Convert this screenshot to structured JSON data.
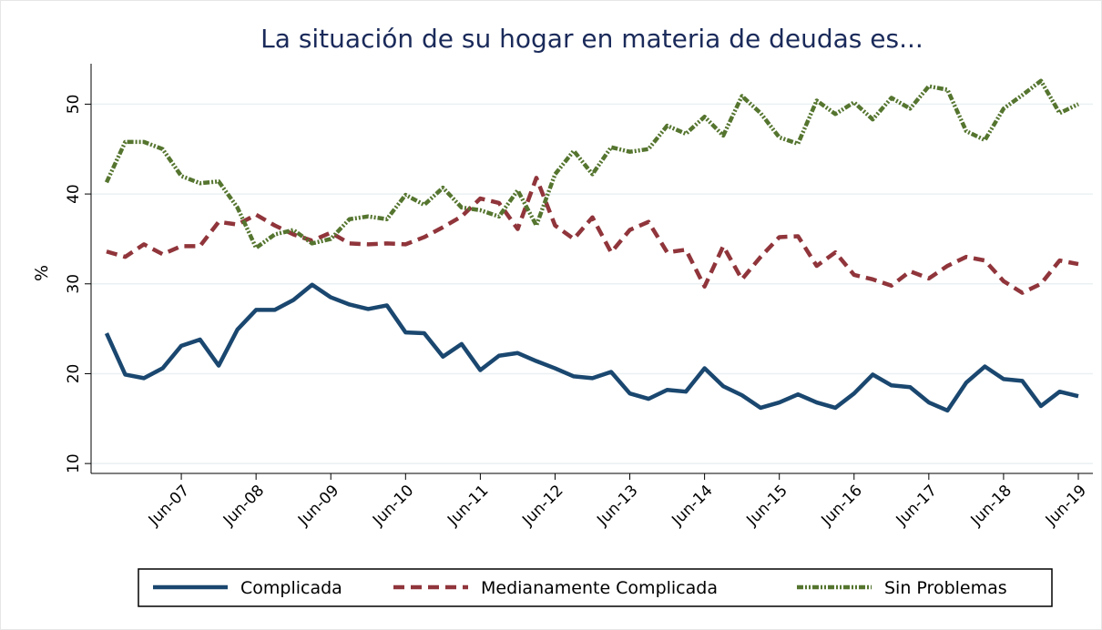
{
  "chart_data": {
    "type": "line",
    "title": "La situación de su hogar en materia de deudas es...",
    "ylabel": "%",
    "categories": [
      null,
      null,
      null,
      null,
      "Jun-07",
      null,
      null,
      null,
      "Jun-08",
      null,
      null,
      null,
      "Jun-09",
      null,
      null,
      null,
      "Jun-10",
      null,
      null,
      null,
      "Jun-11",
      null,
      null,
      null,
      "Jun-12",
      null,
      null,
      null,
      "Jun-13",
      null,
      null,
      null,
      "Jun-14",
      null,
      null,
      null,
      "Jun-15",
      null,
      null,
      null,
      "Jun-16",
      null,
      null,
      null,
      "Jun-17",
      null,
      null,
      null,
      "Jun-18",
      null,
      null,
      null,
      "Jun-19"
    ],
    "series": [
      {
        "name": "Complicada",
        "color": "#1a476f",
        "dash": "solid",
        "values": [
          24.5,
          19.9,
          19.5,
          20.6,
          23.1,
          23.8,
          20.9,
          24.9,
          27.1,
          27.1,
          28.2,
          29.9,
          28.5,
          27.7,
          27.2,
          27.6,
          24.6,
          24.5,
          21.9,
          23.3,
          20.4,
          22.0,
          22.3,
          21.4,
          20.6,
          19.7,
          19.5,
          20.2,
          17.8,
          17.2,
          18.2,
          18.0,
          20.6,
          18.6,
          17.6,
          16.2,
          16.8,
          17.7,
          16.8,
          16.2,
          17.8,
          19.9,
          18.7,
          18.5,
          16.8,
          15.9,
          19.0,
          20.8,
          19.4,
          19.2,
          16.4,
          18.0,
          17.5
        ]
      },
      {
        "name": "Medianamente Complicada",
        "color": "#90353b",
        "dash": "dash",
        "values": [
          33.6,
          33.0,
          34.4,
          33.3,
          34.2,
          34.2,
          36.9,
          36.6,
          37.7,
          36.5,
          35.5,
          34.8,
          35.7,
          34.5,
          34.4,
          34.5,
          34.4,
          35.2,
          36.3,
          37.5,
          39.5,
          39.0,
          36.1,
          41.8,
          36.5,
          35.0,
          37.4,
          33.5,
          36.0,
          36.9,
          33.5,
          33.8,
          29.7,
          34.2,
          30.5,
          33.0,
          35.2,
          35.3,
          32.0,
          33.5,
          31.0,
          30.5,
          29.8,
          31.4,
          30.6,
          32.0,
          33.0,
          32.6,
          30.3,
          29.0,
          30.0,
          32.6,
          32.2
        ]
      },
      {
        "name": "Sin Problemas",
        "color": "#55752f",
        "dash": "dashdot",
        "values": [
          41.3,
          45.8,
          45.8,
          45.0,
          42.0,
          41.2,
          41.4,
          38.5,
          34.0,
          35.5,
          36.0,
          34.5,
          35.0,
          37.2,
          37.5,
          37.2,
          39.9,
          38.8,
          40.7,
          38.5,
          38.2,
          37.5,
          40.4,
          36.5,
          42.2,
          44.8,
          42.2,
          45.2,
          44.7,
          45.0,
          47.6,
          46.7,
          48.6,
          46.5,
          50.9,
          49.0,
          46.3,
          45.6,
          50.4,
          48.9,
          50.2,
          48.3,
          50.7,
          49.5,
          52.0,
          51.6,
          47.0,
          46.0,
          49.5,
          51.0,
          52.6,
          49.0,
          50.0
        ]
      }
    ],
    "ylim": [
      8.9,
      54.5
    ],
    "yticks": [
      10,
      20,
      30,
      40,
      50
    ],
    "grid": true,
    "legend": "bottom"
  }
}
